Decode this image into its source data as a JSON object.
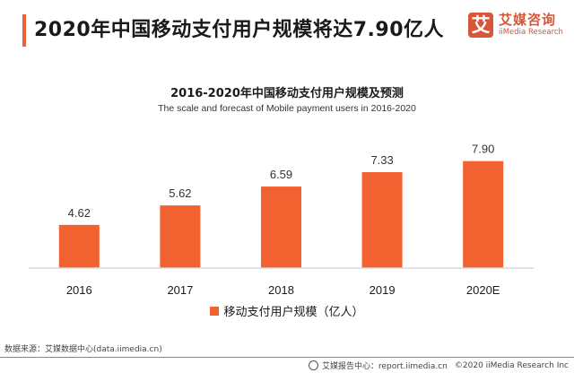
{
  "header": {
    "title": "2020年中国移动支付用户规模将达7.90亿人",
    "accent_color": "#e8623a"
  },
  "logo": {
    "mark": "艾",
    "name_cn": "艾媒咨询",
    "name_en": "iiMedia Research",
    "color": "#d9553a"
  },
  "chart_data": {
    "type": "bar",
    "title": "2016-2020年中国移动支付用户规模及预测",
    "subtitle": "The scale and forecast of Mobile payment users in 2016-2020",
    "categories": [
      "2016",
      "2017",
      "2018",
      "2019",
      "2020E"
    ],
    "series": [
      {
        "name": "移动支付用户规模（亿人）",
        "values": [
          4.62,
          5.62,
          6.59,
          7.33,
          7.9
        ],
        "labels": [
          "4.62",
          "5.62",
          "6.59",
          "7.33",
          "7.90"
        ],
        "color": "#f26130"
      }
    ],
    "xlabel": "",
    "ylabel": "",
    "ylim": [
      0,
      10
    ],
    "grid": false,
    "legend_position": "bottom"
  },
  "source": "数据来源：艾媒数据中心(data.iimedia.cn)",
  "footer": {
    "report_center": "艾媒报告中心：report.iimedia.cn",
    "copyright": "©2020  iiMedia Research  Inc"
  }
}
